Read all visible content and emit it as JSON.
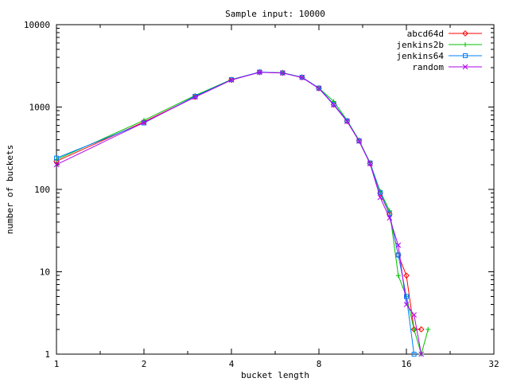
{
  "window": {
    "background": "#ffffff",
    "border_color": "#000000"
  },
  "chart_data": {
    "type": "line",
    "title": "Sample input: 10000",
    "xlabel": "bucket length",
    "ylabel": "number of buckets",
    "x_scale": "log2",
    "y_scale": "log10",
    "xlim": [
      1,
      32
    ],
    "ylim": [
      1,
      10000
    ],
    "x_major_ticks": [
      1,
      2,
      4,
      8,
      16,
      32
    ],
    "y_major_ticks": [
      1,
      10,
      100,
      1000,
      10000
    ],
    "grid": "off",
    "legend_position": "top-right-inside",
    "series": [
      {
        "name": "abcd64d",
        "color": "#ff0000",
        "marker": "diamond",
        "points": [
          [
            1,
            220
          ],
          [
            2,
            660
          ],
          [
            3,
            1330
          ],
          [
            4,
            2140
          ],
          [
            5,
            2650
          ],
          [
            6,
            2600
          ],
          [
            7,
            2290
          ],
          [
            8,
            1690
          ],
          [
            9,
            1070
          ],
          [
            10,
            675
          ],
          [
            11,
            390
          ],
          [
            12,
            207
          ],
          [
            13,
            90
          ],
          [
            14,
            50
          ],
          [
            15,
            16
          ],
          [
            16,
            9
          ],
          [
            17,
            2
          ],
          [
            18,
            2
          ]
        ]
      },
      {
        "name": "jenkins2b",
        "color": "#00c000",
        "marker": "plus",
        "points": [
          [
            1,
            230
          ],
          [
            2,
            690
          ],
          [
            3,
            1380
          ],
          [
            4,
            2160
          ],
          [
            5,
            2640
          ],
          [
            6,
            2610
          ],
          [
            7,
            2300
          ],
          [
            8,
            1700
          ],
          [
            9,
            1170
          ],
          [
            10,
            690
          ],
          [
            11,
            395
          ],
          [
            12,
            210
          ],
          [
            13,
            95
          ],
          [
            14,
            55
          ],
          [
            15,
            9
          ],
          [
            16,
            5
          ],
          [
            17,
            2
          ],
          [
            18,
            1
          ],
          [
            19,
            2
          ]
        ]
      },
      {
        "name": "jenkins64",
        "color": "#0080ff",
        "marker": "square",
        "points": [
          [
            1,
            240
          ],
          [
            2,
            640
          ],
          [
            3,
            1350
          ],
          [
            4,
            2150
          ],
          [
            5,
            2660
          ],
          [
            6,
            2600
          ],
          [
            7,
            2300
          ],
          [
            8,
            1700
          ],
          [
            9,
            1080
          ],
          [
            10,
            680
          ],
          [
            11,
            390
          ],
          [
            12,
            210
          ],
          [
            13,
            92
          ],
          [
            14,
            51
          ],
          [
            15,
            16
          ],
          [
            16,
            5
          ],
          [
            17,
            1
          ]
        ]
      },
      {
        "name": "random",
        "color": "#b000f0",
        "marker": "x",
        "points": [
          [
            1,
            200
          ],
          [
            2,
            650
          ],
          [
            3,
            1320
          ],
          [
            4,
            2130
          ],
          [
            5,
            2640
          ],
          [
            6,
            2590
          ],
          [
            7,
            2280
          ],
          [
            8,
            1680
          ],
          [
            9,
            1060
          ],
          [
            10,
            670
          ],
          [
            11,
            385
          ],
          [
            12,
            205
          ],
          [
            13,
            80
          ],
          [
            14,
            45
          ],
          [
            15,
            21
          ],
          [
            16,
            4
          ],
          [
            17,
            3
          ],
          [
            18,
            1
          ]
        ]
      }
    ]
  }
}
